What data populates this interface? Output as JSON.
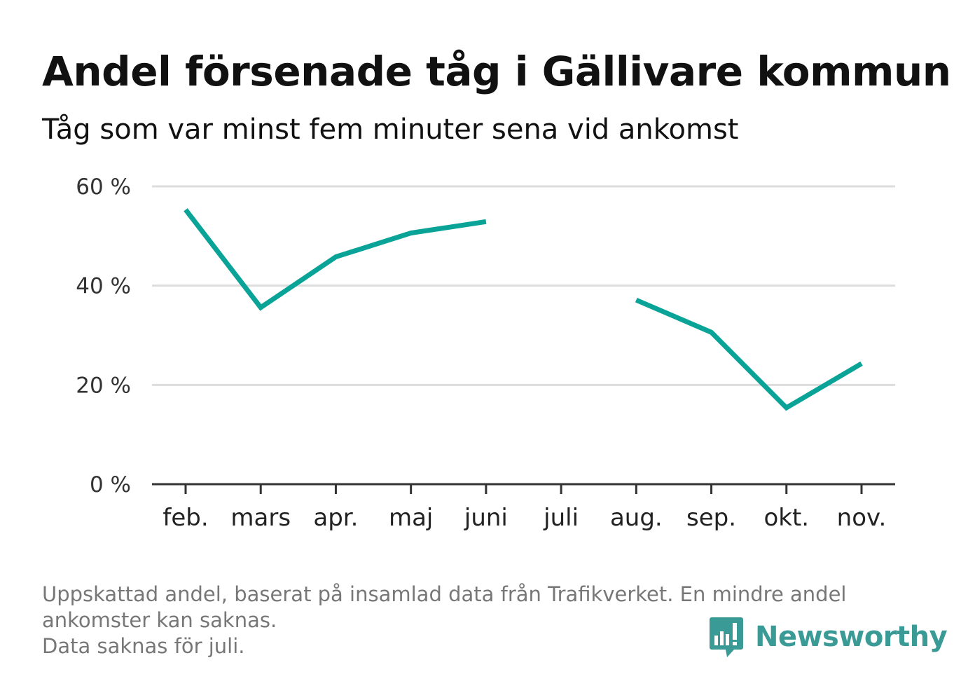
{
  "chart_data": {
    "type": "line",
    "title": "Andel försenade tåg i Gällivare kommun",
    "subtitle": "Tåg som var minst fem minuter sena vid ankomst",
    "categories": [
      "feb.",
      "mars",
      "apr.",
      "maj",
      "juni",
      "juli",
      "aug.",
      "sep.",
      "okt.",
      "nov."
    ],
    "series": [
      {
        "values": [
          55.3,
          35.6,
          45.8,
          50.6,
          52.9,
          null,
          37.1,
          30.6,
          15.4,
          24.3
        ],
        "color": "#0aa398"
      }
    ],
    "ylim": [
      0,
      60
    ],
    "yticks": [
      {
        "value": 0,
        "label": "0 %"
      },
      {
        "value": 20,
        "label": "20 %"
      },
      {
        "value": 40,
        "label": "40 %"
      },
      {
        "value": 60,
        "label": "60 %"
      }
    ],
    "xlabel": "",
    "ylabel": "",
    "grid": true,
    "colors": {
      "line": "#0aa398",
      "grid": "#dddddd",
      "axis": "#333333"
    }
  },
  "footnote": {
    "line1": "Uppskattad andel, baserat på insamlad data från Trafikverket. En mindre andel",
    "line2": "ankomster kan saknas.",
    "line3": "Data saknas för juli."
  },
  "brand": {
    "name": "Newsworthy",
    "icon": "newsworthy-logo-icon",
    "color": "#3a9a95"
  }
}
